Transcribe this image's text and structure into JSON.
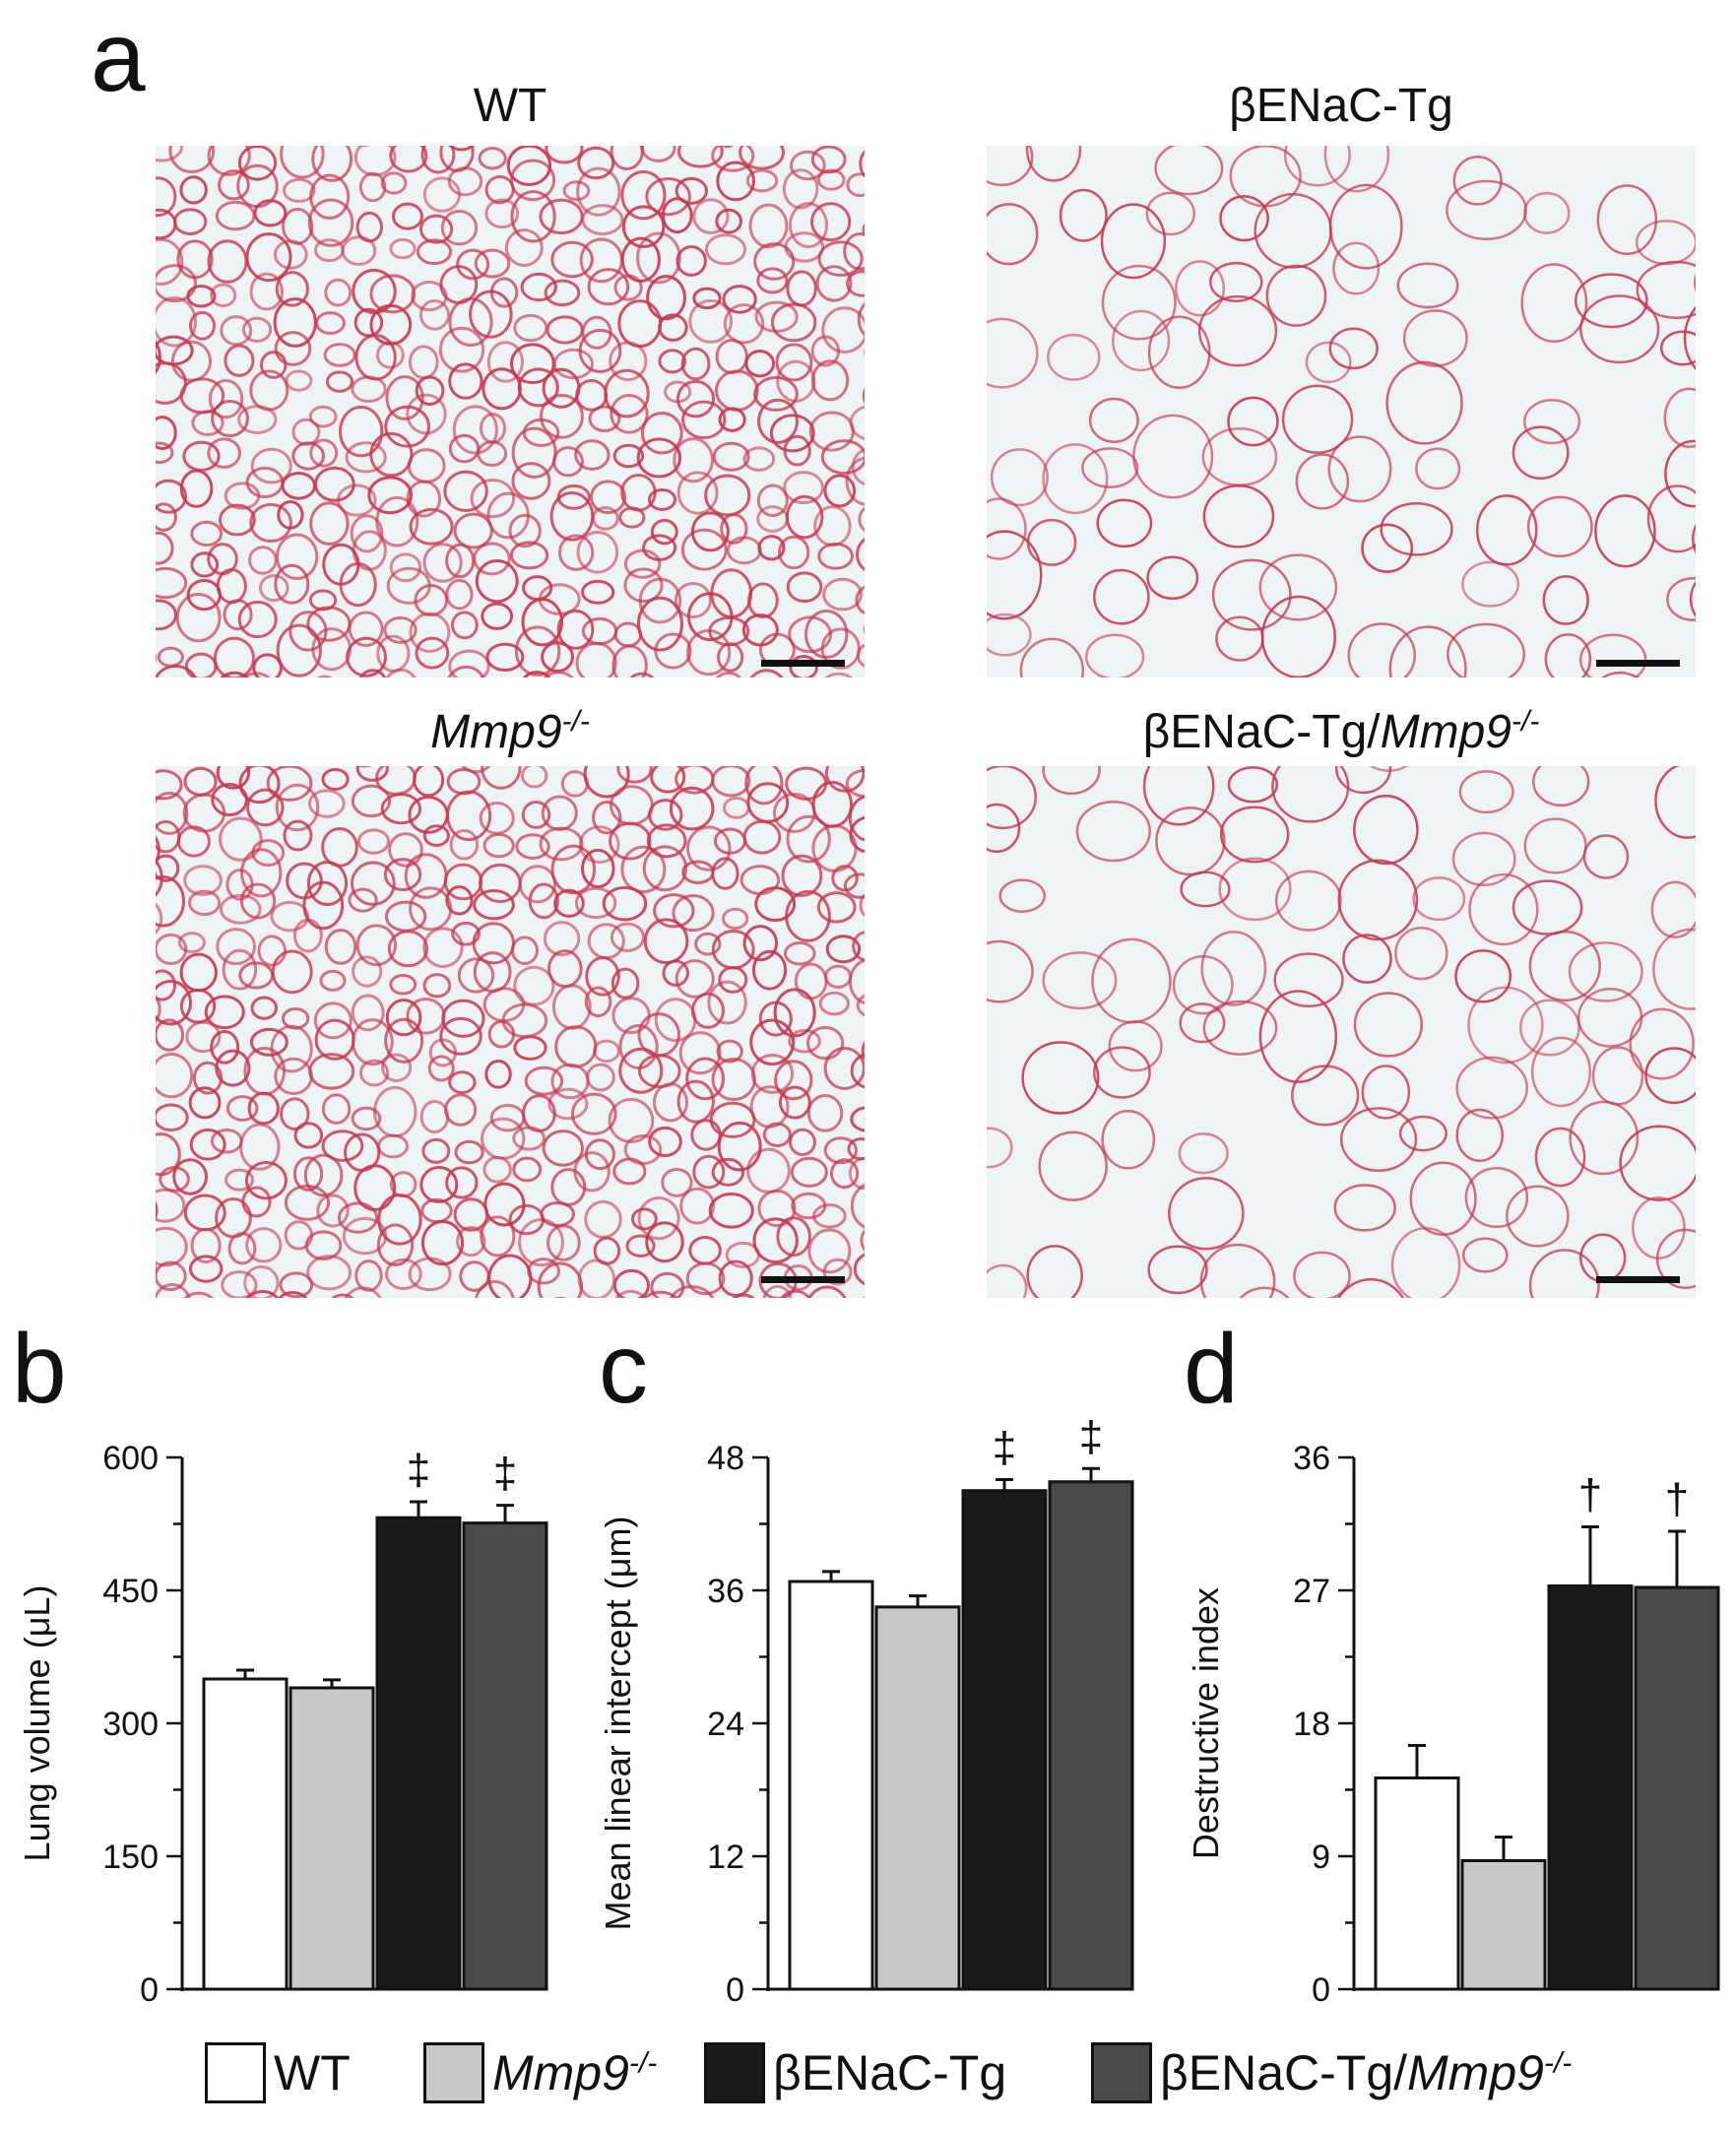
{
  "panel_a": {
    "letter": "a",
    "images": [
      {
        "title": "WT",
        "title_italic_part": "",
        "title_sup": "",
        "density": "dense"
      },
      {
        "title": "βENaC-Tg",
        "title_italic_part": "",
        "title_sup": "",
        "density": "sparse"
      },
      {
        "title": "",
        "title_italic_part": "Mmp9",
        "title_sup": "-/-",
        "density": "dense"
      },
      {
        "title": "βENaC-Tg/",
        "title_italic_part": "Mmp9",
        "title_sup": "-/-",
        "density": "sparse"
      }
    ],
    "tissue_color": "#c8344e",
    "background_color": "#eef3f6"
  },
  "panel_b": {
    "letter": "b"
  },
  "panel_c": {
    "letter": "c"
  },
  "panel_d": {
    "letter": "d"
  },
  "legend": [
    {
      "label": "WT",
      "italic": "",
      "sup": "",
      "color": "#ffffff"
    },
    {
      "label": "",
      "italic": "Mmp9",
      "sup": "-/-",
      "color": "#c8c8c8"
    },
    {
      "label": "βENaC-Tg",
      "italic": "",
      "sup": "",
      "color": "#1a1a1a"
    },
    {
      "label": "βENaC-Tg/",
      "italic": "Mmp9",
      "sup": "-/-",
      "color": "#4a4a4a"
    }
  ],
  "chart_data": [
    {
      "type": "bar",
      "panel": "b",
      "ylabel": "Lung volume (μL)",
      "ylim": [
        0,
        600
      ],
      "yticks": [
        0,
        150,
        300,
        450,
        600
      ],
      "categories": [
        "WT",
        "Mmp9-/-",
        "βENaC-Tg",
        "βENaC-Tg/Mmp9-/-"
      ],
      "values": [
        350,
        340,
        532,
        526
      ],
      "errors": [
        10,
        9,
        18,
        20
      ],
      "annotations": [
        "",
        "",
        "‡",
        "‡"
      ],
      "colors": [
        "#ffffff",
        "#c8c8c8",
        "#1a1a1a",
        "#4a4a4a"
      ]
    },
    {
      "type": "bar",
      "panel": "c",
      "ylabel": "Mean linear intercept (μm)",
      "ylim": [
        0,
        48
      ],
      "yticks": [
        0,
        12,
        24,
        36,
        48
      ],
      "categories": [
        "WT",
        "Mmp9-/-",
        "βENaC-Tg",
        "βENaC-Tg/Mmp9-/-"
      ],
      "values": [
        36.8,
        34.5,
        45.0,
        45.8
      ],
      "errors": [
        0.9,
        1.0,
        1.0,
        1.2
      ],
      "annotations": [
        "",
        "",
        "‡",
        "‡"
      ],
      "colors": [
        "#ffffff",
        "#c8c8c8",
        "#1a1a1a",
        "#4a4a4a"
      ]
    },
    {
      "type": "bar",
      "panel": "d",
      "ylabel": "Destructive index",
      "ylim": [
        0,
        36
      ],
      "yticks": [
        0,
        9,
        18,
        27,
        36
      ],
      "categories": [
        "WT",
        "Mmp9-/-",
        "βENaC-Tg",
        "βENaC-Tg/Mmp9-/-"
      ],
      "values": [
        14.3,
        8.7,
        27.3,
        27.2
      ],
      "errors": [
        2.2,
        1.6,
        4.0,
        3.8
      ],
      "annotations": [
        "",
        "",
        "†",
        "†"
      ],
      "colors": [
        "#ffffff",
        "#c8c8c8",
        "#1a1a1a",
        "#4a4a4a"
      ]
    }
  ]
}
